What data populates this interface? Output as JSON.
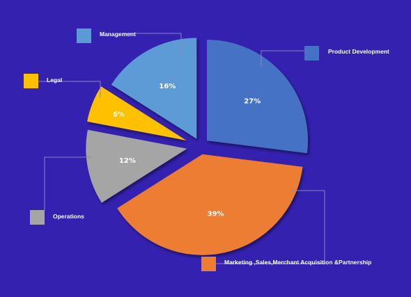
{
  "chart_data": {
    "type": "pie",
    "title": "",
    "exploded": true,
    "slices": [
      {
        "name": "Product Development",
        "value": 27,
        "label": "27%",
        "color": "#4472c4"
      },
      {
        "name": "Marketing ,Sales,Merchant Acquisition &Partnership",
        "value": 39,
        "label": "39%",
        "color": "#ed7d31"
      },
      {
        "name": "Operations",
        "value": 12,
        "label": "12%",
        "color": "#a5a5a5"
      },
      {
        "name": "Legal",
        "value": 6,
        "label": "6%",
        "color": "#ffc000"
      },
      {
        "name": "Management",
        "value": 16,
        "label": "16%",
        "color": "#5b9bd5"
      }
    ],
    "legend": "callouts-around-pie"
  }
}
